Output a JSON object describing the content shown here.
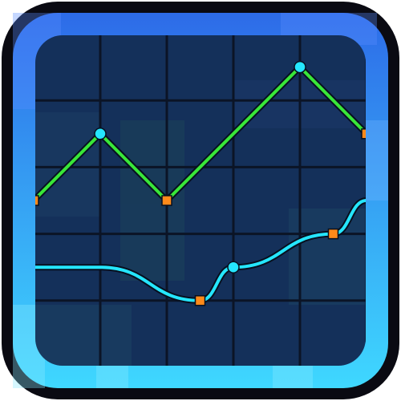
{
  "icon": {
    "name": "line-chart-app-icon",
    "colors": {
      "outline": "#0a0a12",
      "frame_top": "#2d6be8",
      "frame_bottom": "#3fd8ff",
      "screen": "#14305a",
      "grid": "#0b1426",
      "line_green": "#39e639",
      "line_cyan": "#25e6ff",
      "marker_square": "#ff8a1a",
      "marker_circle": "#25e6ff"
    }
  },
  "chart_data": {
    "type": "line",
    "x": [
      0,
      1,
      2,
      3,
      4,
      5
    ],
    "xlim": [
      0,
      5
    ],
    "ylim": [
      0,
      5
    ],
    "grid": true,
    "series": [
      {
        "points": [
          {
            "x": 0,
            "y": 2.5,
            "marker": "square"
          },
          {
            "x": 1,
            "y": 3.5,
            "marker": "circle"
          },
          {
            "x": 2,
            "y": 2.5,
            "marker": "square"
          },
          {
            "x": 4,
            "y": 4.5,
            "marker": "circle"
          },
          {
            "x": 5,
            "y": 3.5,
            "marker": "square"
          }
        ],
        "color": "#39e639",
        "style": "straight"
      },
      {
        "points": [
          {
            "x": 0,
            "y": 1.5,
            "marker": "none"
          },
          {
            "x": 1,
            "y": 1.5,
            "marker": "none"
          },
          {
            "x": 2.5,
            "y": 1.0,
            "marker": "square"
          },
          {
            "x": 3,
            "y": 1.5,
            "marker": "circle"
          },
          {
            "x": 4.5,
            "y": 2.0,
            "marker": "square"
          },
          {
            "x": 5,
            "y": 2.5,
            "marker": "none"
          }
        ],
        "color": "#25e6ff",
        "style": "smooth"
      }
    ]
  }
}
